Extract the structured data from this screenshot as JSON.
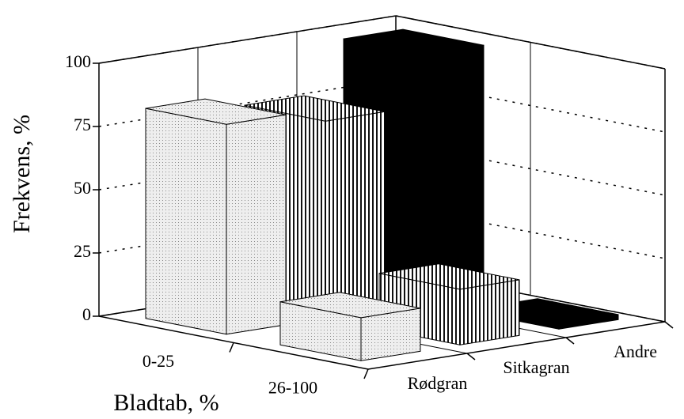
{
  "chart_data": {
    "type": "bar3d",
    "xlabel": "Bladtab, %",
    "ylabel": "Frekvens, %",
    "categories": [
      "0-25",
      "26-100"
    ],
    "series": [
      {
        "name": "Rødgran",
        "color": "#e6e6e6",
        "values": [
          83,
          17
        ]
      },
      {
        "name": "Sitkagran",
        "color": "#ffffff",
        "values": [
          78,
          22
        ]
      },
      {
        "name": "Andre",
        "color": "#000000",
        "values": [
          98,
          2
        ]
      }
    ],
    "ylim": [
      0,
      100
    ],
    "yticks": [
      0,
      25,
      50,
      75,
      100
    ],
    "grid": true
  }
}
